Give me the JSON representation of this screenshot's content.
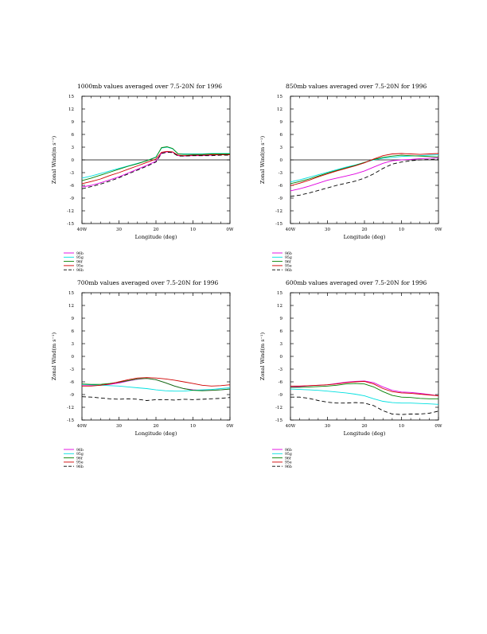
{
  "chart_data": [
    {
      "type": "line",
      "title": "1000mb values averaged over 7.5-20N for 1996",
      "xlabel": "Longitude (deg)",
      "ylabel": "Zonal Wind(m s⁻¹)",
      "xlim": [
        40,
        0
      ],
      "ylim": [
        -15,
        15
      ],
      "x_ticks": [
        {
          "v": 40,
          "label": "40W"
        },
        {
          "v": 30,
          "label": "30"
        },
        {
          "v": 20,
          "label": "20"
        },
        {
          "v": 10,
          "label": "10"
        },
        {
          "v": 0,
          "label": "0W"
        }
      ],
      "y_ticks": [
        15,
        12,
        9,
        6,
        3,
        0,
        -3,
        -6,
        -9,
        -12,
        -15
      ],
      "zero_line": true,
      "x": [
        40,
        37.5,
        35,
        32.5,
        30,
        27.5,
        25,
        22.5,
        20,
        18.5,
        17,
        15.5,
        14,
        12.5,
        10,
        7.5,
        5,
        2.5,
        0
      ],
      "series": [
        {
          "name": "96b",
          "color": "#e000e0",
          "dash": false,
          "values": [
            -6.4,
            -6.0,
            -5.4,
            -4.7,
            -4.0,
            -3.1,
            -2.2,
            -1.3,
            -0.3,
            1.6,
            1.9,
            1.8,
            1.0,
            0.9,
            1.0,
            1.0,
            1.1,
            1.2,
            1.2
          ]
        },
        {
          "name": "95g",
          "color": "#00e0e0",
          "dash": false,
          "values": [
            -4.3,
            -3.8,
            -3.2,
            -2.6,
            -2.0,
            -1.4,
            -0.8,
            -0.2,
            0.7,
            2.8,
            3.0,
            2.6,
            1.4,
            1.4,
            1.4,
            1.4,
            1.5,
            1.5,
            1.5
          ]
        },
        {
          "name": "96f",
          "color": "#008000",
          "dash": false,
          "values": [
            -4.9,
            -4.3,
            -3.6,
            -2.9,
            -2.2,
            -1.5,
            -0.9,
            -0.2,
            0.6,
            2.9,
            3.1,
            2.7,
            1.4,
            1.3,
            1.3,
            1.3,
            1.4,
            1.4,
            1.4
          ]
        },
        {
          "name": "95e",
          "color": "#d00000",
          "dash": false,
          "values": [
            -5.6,
            -5.1,
            -4.5,
            -3.7,
            -3.0,
            -2.2,
            -1.4,
            -0.6,
            0.2,
            1.8,
            2.0,
            1.9,
            1.1,
            1.0,
            1.1,
            1.1,
            1.2,
            1.2,
            1.2
          ]
        },
        {
          "name": "96b",
          "color": "#000000",
          "dash": true,
          "values": [
            -6.8,
            -6.3,
            -5.7,
            -5.0,
            -4.2,
            -3.3,
            -2.4,
            -1.5,
            -0.5,
            1.5,
            1.8,
            1.7,
            0.9,
            0.9,
            1.0,
            1.0,
            1.0,
            1.1,
            1.1
          ]
        }
      ]
    },
    {
      "type": "line",
      "title": "850mb values averaged over 7.5-20N for 1996",
      "xlabel": "Longitude (deg)",
      "ylabel": "Zonal Wind(m s⁻¹)",
      "xlim": [
        40,
        0
      ],
      "ylim": [
        -15,
        15
      ],
      "x_ticks": [
        {
          "v": 40,
          "label": "40W"
        },
        {
          "v": 30,
          "label": "30"
        },
        {
          "v": 20,
          "label": "20"
        },
        {
          "v": 10,
          "label": "10"
        },
        {
          "v": 0,
          "label": "0W"
        }
      ],
      "y_ticks": [
        15,
        12,
        9,
        6,
        3,
        0,
        -3,
        -6,
        -9,
        -12,
        -15
      ],
      "zero_line": true,
      "x": [
        40,
        37.5,
        35,
        32.5,
        30,
        27.5,
        25,
        22.5,
        20,
        17.5,
        15,
        12.5,
        10,
        7.5,
        5,
        2.5,
        0
      ],
      "series": [
        {
          "name": "96b",
          "color": "#e000e0",
          "dash": false,
          "values": [
            -7.3,
            -6.8,
            -6.2,
            -5.5,
            -4.8,
            -4.3,
            -3.8,
            -3.3,
            -2.6,
            -1.7,
            -0.8,
            -0.2,
            0.0,
            0.1,
            0.3,
            0.4,
            0.5
          ]
        },
        {
          "name": "95g",
          "color": "#00e0e0",
          "dash": false,
          "values": [
            -5.2,
            -4.7,
            -4.1,
            -3.5,
            -2.9,
            -2.3,
            -1.7,
            -1.2,
            -0.6,
            0.0,
            0.4,
            0.6,
            0.8,
            0.9,
            1.0,
            1.1,
            1.2
          ]
        },
        {
          "name": "96f",
          "color": "#008000",
          "dash": false,
          "values": [
            -5.6,
            -5.1,
            -4.5,
            -3.8,
            -3.1,
            -2.5,
            -1.9,
            -1.3,
            -0.6,
            0.1,
            0.6,
            0.9,
            1.1,
            1.0,
            0.9,
            0.8,
            0.7
          ]
        },
        {
          "name": "95e",
          "color": "#d00000",
          "dash": false,
          "values": [
            -6.1,
            -5.5,
            -4.8,
            -4.0,
            -3.3,
            -2.6,
            -2.0,
            -1.4,
            -0.7,
            0.2,
            1.0,
            1.4,
            1.5,
            1.4,
            1.3,
            1.4,
            1.5
          ]
        },
        {
          "name": "96b",
          "color": "#000000",
          "dash": true,
          "values": [
            -8.6,
            -8.3,
            -7.8,
            -7.2,
            -6.6,
            -6.0,
            -5.5,
            -5.0,
            -4.3,
            -3.3,
            -2.0,
            -1.0,
            -0.5,
            -0.2,
            0.0,
            0.1,
            0.2
          ]
        }
      ]
    },
    {
      "type": "line",
      "title": "700mb values averaged over 7.5-20N for 1996",
      "xlabel": "Longitude (deg)",
      "ylabel": "Zonal Wind(m s⁻¹)",
      "xlim": [
        40,
        0
      ],
      "ylim": [
        -15,
        15
      ],
      "x_ticks": [
        {
          "v": 40,
          "label": "40W"
        },
        {
          "v": 30,
          "label": "30"
        },
        {
          "v": 20,
          "label": "20"
        },
        {
          "v": 10,
          "label": "10"
        },
        {
          "v": 0,
          "label": "0W"
        }
      ],
      "y_ticks": [
        15,
        12,
        9,
        6,
        3,
        0,
        -3,
        -6,
        -9,
        -12,
        -15
      ],
      "zero_line": false,
      "x": [
        40,
        37.5,
        35,
        32.5,
        30,
        27.5,
        25,
        22.5,
        20,
        17.5,
        15,
        12.5,
        10,
        7.5,
        5,
        2.5,
        0
      ],
      "series": [
        {
          "name": "96b",
          "color": "#e000e0",
          "dash": false,
          "values": [
            -6.9,
            -6.9,
            -6.8,
            -6.6,
            -6.3,
            -5.8,
            -5.4,
            -5.2,
            -5.5,
            -6.2,
            -7.0,
            -7.6,
            -7.9,
            -8.0,
            -8.0,
            -7.9,
            -7.7
          ]
        },
        {
          "name": "95g",
          "color": "#00e0e0",
          "dash": false,
          "values": [
            -6.6,
            -6.7,
            -6.8,
            -6.9,
            -7.0,
            -7.2,
            -7.4,
            -7.6,
            -7.9,
            -8.1,
            -8.2,
            -8.2,
            -8.0,
            -7.9,
            -7.8,
            -7.6,
            -7.4
          ]
        },
        {
          "name": "96f",
          "color": "#008000",
          "dash": false,
          "values": [
            -6.5,
            -6.6,
            -6.6,
            -6.4,
            -6.1,
            -5.7,
            -5.3,
            -5.2,
            -5.5,
            -6.2,
            -7.0,
            -7.6,
            -8.0,
            -8.1,
            -8.0,
            -7.9,
            -7.7
          ]
        },
        {
          "name": "95e",
          "color": "#d00000",
          "dash": false,
          "values": [
            -7.0,
            -7.0,
            -6.8,
            -6.5,
            -6.0,
            -5.5,
            -5.1,
            -5.0,
            -5.1,
            -5.3,
            -5.6,
            -6.0,
            -6.4,
            -6.8,
            -7.0,
            -6.9,
            -6.7
          ]
        },
        {
          "name": "96b",
          "color": "#000000",
          "dash": true,
          "values": [
            -9.5,
            -9.6,
            -9.8,
            -10.0,
            -10.1,
            -10.0,
            -10.1,
            -10.4,
            -10.2,
            -10.2,
            -10.3,
            -10.1,
            -10.2,
            -10.1,
            -10.0,
            -9.9,
            -9.7
          ]
        }
      ]
    },
    {
      "type": "line",
      "title": "600mb values averaged over 7.5-20N for 1996",
      "xlabel": "Longitude (deg)",
      "ylabel": "Zonal Wind(m s⁻¹)",
      "xlim": [
        40,
        0
      ],
      "ylim": [
        -15,
        15
      ],
      "x_ticks": [
        {
          "v": 40,
          "label": "40W"
        },
        {
          "v": 30,
          "label": "30"
        },
        {
          "v": 20,
          "label": "20"
        },
        {
          "v": 10,
          "label": "10"
        },
        {
          "v": 0,
          "label": "0W"
        }
      ],
      "y_ticks": [
        15,
        12,
        9,
        6,
        3,
        0,
        -3,
        -6,
        -9,
        -12,
        -15
      ],
      "zero_line": false,
      "x": [
        40,
        37.5,
        35,
        32.5,
        30,
        27.5,
        25,
        22.5,
        20,
        17.5,
        15,
        12.5,
        10,
        7.5,
        5,
        2.5,
        0
      ],
      "series": [
        {
          "name": "96b",
          "color": "#e000e0",
          "dash": false,
          "values": [
            -7.2,
            -7.1,
            -6.9,
            -6.8,
            -6.7,
            -6.4,
            -6.1,
            -5.9,
            -5.8,
            -6.2,
            -7.2,
            -8.0,
            -8.4,
            -8.5,
            -8.7,
            -9.0,
            -9.3
          ]
        },
        {
          "name": "95g",
          "color": "#00e0e0",
          "dash": false,
          "values": [
            -7.7,
            -7.8,
            -7.9,
            -8.0,
            -8.2,
            -8.4,
            -8.6,
            -8.9,
            -9.3,
            -10.0,
            -10.6,
            -10.9,
            -11.0,
            -11.0,
            -11.1,
            -11.2,
            -11.3
          ]
        },
        {
          "name": "96f",
          "color": "#008000",
          "dash": false,
          "values": [
            -7.3,
            -7.3,
            -7.2,
            -7.1,
            -7.0,
            -6.8,
            -6.5,
            -6.4,
            -6.5,
            -7.2,
            -8.3,
            -9.2,
            -9.6,
            -9.7,
            -9.9,
            -10.0,
            -10.0
          ]
        },
        {
          "name": "95e",
          "color": "#d00000",
          "dash": false,
          "values": [
            -7.0,
            -7.0,
            -6.9,
            -6.8,
            -6.7,
            -6.5,
            -6.2,
            -6.0,
            -5.9,
            -6.5,
            -7.6,
            -8.3,
            -8.6,
            -8.7,
            -8.9,
            -9.1,
            -9.3
          ]
        },
        {
          "name": "96b",
          "color": "#000000",
          "dash": true,
          "values": [
            -9.6,
            -9.6,
            -9.9,
            -10.4,
            -10.8,
            -11.0,
            -11.0,
            -10.9,
            -11.0,
            -11.6,
            -12.8,
            -13.6,
            -13.7,
            -13.6,
            -13.6,
            -13.4,
            -12.9
          ]
        }
      ]
    }
  ]
}
